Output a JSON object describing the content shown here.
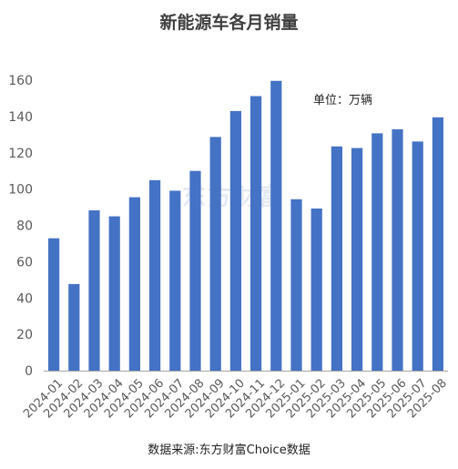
{
  "title": "新能源车各月销量",
  "unit_label": "单位：万辆",
  "source_label": "数据来源:东方财富Choice数据",
  "watermark": "东方财富",
  "colors": {
    "bar": "#4472c4",
    "axis": "#a6a6a6",
    "text": "#595959"
  },
  "chart_data": {
    "type": "bar",
    "title": "新能源车各月销量",
    "xlabel": "",
    "ylabel": "",
    "ylim": [
      0,
      160
    ],
    "yticks": [
      0,
      20,
      40,
      60,
      80,
      100,
      120,
      140,
      160
    ],
    "grid": false,
    "categories": [
      "2024-01",
      "2024-02",
      "2024-03",
      "2024-04",
      "2024-05",
      "2024-06",
      "2024-07",
      "2024-08",
      "2024-09",
      "2024-10",
      "2024-11",
      "2024-12",
      "2025-01",
      "2025-02",
      "2025-03",
      "2025-04",
      "2025-05",
      "2025-06",
      "2025-07",
      "2025-08"
    ],
    "values": [
      72.9,
      47.7,
      88.3,
      85.0,
      95.5,
      104.9,
      99.1,
      110.0,
      128.7,
      143.0,
      151.2,
      159.6,
      94.4,
      89.3,
      123.5,
      122.6,
      130.7,
      132.9,
      126.2,
      139.5
    ]
  }
}
